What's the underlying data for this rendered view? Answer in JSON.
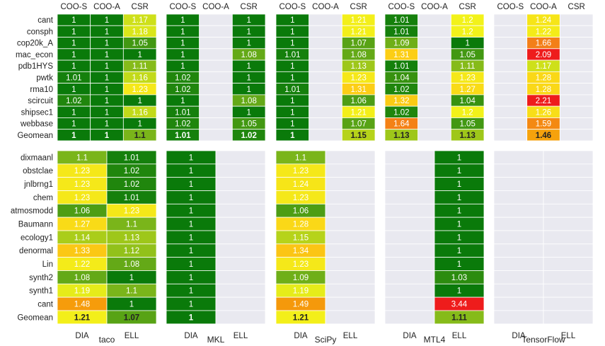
{
  "chart_data": {
    "type": "heatmap",
    "title": "",
    "value_meaning": "normalized runtime (1 = best)",
    "color_scale": {
      "stops": [
        {
          "value": 1.0,
          "color": "#0a7a0a"
        },
        {
          "value": 1.1,
          "color": "#7ab51a"
        },
        {
          "value": 1.2,
          "color": "#f2f21a"
        },
        {
          "value": 1.3,
          "color": "#fcd116"
        },
        {
          "value": 1.5,
          "color": "#f5960a"
        },
        {
          "value": 1.8,
          "color": "#f26a24"
        },
        {
          "value": 2.0,
          "color": "#ee1c1c"
        }
      ],
      "empty_color": "#e9e9f0",
      "text_color": "#ffffff",
      "dark_text_color": "#222222"
    },
    "libraries": [
      "taco",
      "MKL",
      "SciPy",
      "MTL4",
      "TensorFlow"
    ],
    "top_panel": {
      "formats": [
        "COO-S",
        "COO-A",
        "CSR"
      ],
      "rows": [
        "cant",
        "consph",
        "cop20k_A",
        "mac_econ",
        "pdb1HYS",
        "pwtk",
        "rma10",
        "scircuit",
        "shipsec1",
        "webbase",
        "Geomean"
      ],
      "values": {
        "taco": [
          [
            1,
            1,
            1.17
          ],
          [
            1,
            1,
            1.18
          ],
          [
            1,
            1,
            1.05
          ],
          [
            1,
            1,
            1
          ],
          [
            1,
            1,
            1.11
          ],
          [
            1.01,
            1,
            1.16
          ],
          [
            1,
            1,
            1.23
          ],
          [
            1.02,
            1,
            1
          ],
          [
            1,
            1,
            1.16
          ],
          [
            1,
            1,
            1
          ],
          [
            1,
            1,
            1.1
          ]
        ],
        "MKL": [
          [
            1,
            null,
            1
          ],
          [
            1,
            null,
            1
          ],
          [
            1,
            null,
            1
          ],
          [
            1,
            null,
            1.08
          ],
          [
            1,
            null,
            1
          ],
          [
            1.02,
            null,
            1
          ],
          [
            1.02,
            null,
            1
          ],
          [
            1,
            null,
            1.08
          ],
          [
            1.01,
            null,
            1
          ],
          [
            1.02,
            null,
            1.05
          ],
          [
            1.01,
            null,
            1.02
          ]
        ],
        "SciPy": [
          [
            1,
            null,
            1.21
          ],
          [
            1,
            null,
            1.21
          ],
          [
            1,
            null,
            1.07
          ],
          [
            1.01,
            null,
            1.08
          ],
          [
            1,
            null,
            1.13
          ],
          [
            1,
            null,
            1.23
          ],
          [
            1.01,
            null,
            1.31
          ],
          [
            1,
            null,
            1.06
          ],
          [
            1,
            null,
            1.21
          ],
          [
            1,
            null,
            1.07
          ],
          [
            1,
            null,
            1.15
          ]
        ],
        "MTL4": [
          [
            1.01,
            null,
            1.2
          ],
          [
            1.01,
            null,
            1.2
          ],
          [
            1.09,
            null,
            1
          ],
          [
            1.31,
            null,
            1.05
          ],
          [
            1.01,
            null,
            1.11
          ],
          [
            1.04,
            null,
            1.23
          ],
          [
            1.02,
            null,
            1.27
          ],
          [
            1.32,
            null,
            1.04
          ],
          [
            1.02,
            null,
            1.2
          ],
          [
            1.64,
            null,
            1.05
          ],
          [
            1.13,
            null,
            1.13
          ]
        ],
        "TensorFlow": [
          [
            null,
            1.24,
            null
          ],
          [
            null,
            1.22,
            null
          ],
          [
            null,
            1.66,
            null
          ],
          [
            null,
            2.09,
            null
          ],
          [
            null,
            1.17,
            null
          ],
          [
            null,
            1.28,
            null
          ],
          [
            null,
            1.28,
            null
          ],
          [
            null,
            2.21,
            null
          ],
          [
            null,
            1.26,
            null
          ],
          [
            null,
            1.59,
            null
          ],
          [
            null,
            1.46,
            null
          ]
        ]
      }
    },
    "bottom_panel": {
      "formats": [
        "DIA",
        "ELL"
      ],
      "rows": [
        "dixmaanl",
        "obstclae",
        "jnlbrng1",
        "chem",
        "atmosmodd",
        "Baumann",
        "ecology1",
        "denormal",
        "Lin",
        "synth2",
        "synth1",
        "cant",
        "Geomean"
      ],
      "values": {
        "taco": [
          [
            1.1,
            1.01
          ],
          [
            1.23,
            1.02
          ],
          [
            1.23,
            1.02
          ],
          [
            1.23,
            1.01
          ],
          [
            1.06,
            1.23
          ],
          [
            1.27,
            1.1
          ],
          [
            1.14,
            1.13
          ],
          [
            1.33,
            1.12
          ],
          [
            1.22,
            1.08
          ],
          [
            1.08,
            1
          ],
          [
            1.19,
            1.1
          ],
          [
            1.48,
            1
          ],
          [
            1.21,
            1.07
          ]
        ],
        "MKL": [
          [
            1,
            null
          ],
          [
            1,
            null
          ],
          [
            1,
            null
          ],
          [
            1,
            null
          ],
          [
            1,
            null
          ],
          [
            1,
            null
          ],
          [
            1,
            null
          ],
          [
            1,
            null
          ],
          [
            1,
            null
          ],
          [
            1,
            null
          ],
          [
            1,
            null
          ],
          [
            1,
            null
          ],
          [
            1,
            null
          ]
        ],
        "SciPy": [
          [
            1.1,
            null
          ],
          [
            1.23,
            null
          ],
          [
            1.24,
            null
          ],
          [
            1.23,
            null
          ],
          [
            1.06,
            null
          ],
          [
            1.28,
            null
          ],
          [
            1.15,
            null
          ],
          [
            1.34,
            null
          ],
          [
            1.23,
            null
          ],
          [
            1.09,
            null
          ],
          [
            1.19,
            null
          ],
          [
            1.49,
            null
          ],
          [
            1.21,
            null
          ]
        ],
        "MTL4": [
          [
            null,
            1
          ],
          [
            null,
            1
          ],
          [
            null,
            1
          ],
          [
            null,
            1
          ],
          [
            null,
            1
          ],
          [
            null,
            1
          ],
          [
            null,
            1
          ],
          [
            null,
            1
          ],
          [
            null,
            1
          ],
          [
            null,
            1.03
          ],
          [
            null,
            1
          ],
          [
            null,
            3.44
          ],
          [
            null,
            1.11
          ]
        ],
        "TensorFlow": [
          [
            null,
            null
          ],
          [
            null,
            null
          ],
          [
            null,
            null
          ],
          [
            null,
            null
          ],
          [
            null,
            null
          ],
          [
            null,
            null
          ],
          [
            null,
            null
          ],
          [
            null,
            null
          ],
          [
            null,
            null
          ],
          [
            null,
            null
          ],
          [
            null,
            null
          ],
          [
            null,
            null
          ],
          [
            null,
            null
          ]
        ]
      }
    }
  }
}
